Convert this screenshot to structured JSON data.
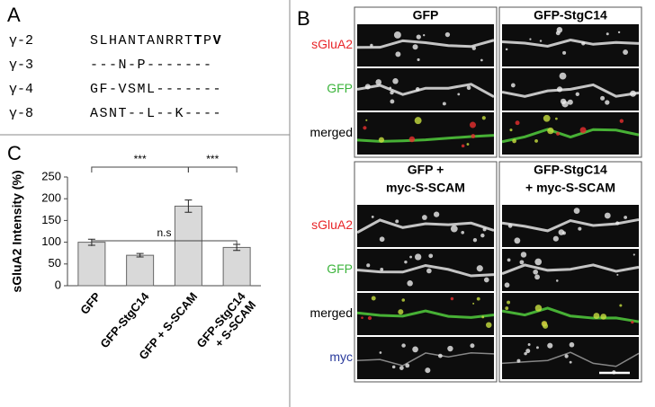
{
  "panel_a": {
    "label": "A",
    "rows": [
      {
        "name": "γ-2",
        "segments": [
          {
            "text": "SLHANTANRRT"
          },
          {
            "text": "T",
            "bold": true
          },
          {
            "text": "P"
          },
          {
            "text": "V",
            "bold": true
          }
        ]
      },
      {
        "name": "γ-3",
        "segments": [
          {
            "text": "---N-P-------"
          }
        ]
      },
      {
        "name": "γ-4",
        "segments": [
          {
            "text": "GF-VSML-------"
          }
        ]
      },
      {
        "name": "γ-8",
        "segments": [
          {
            "text": "ASNT--L--K----"
          }
        ]
      }
    ]
  },
  "panel_b": {
    "label": "B",
    "groups": [
      {
        "headers": [
          [
            "GFP"
          ],
          [
            "GFP-StgC14"
          ]
        ],
        "rows": [
          {
            "label": "sGluA2",
            "color": "#e8262a"
          },
          {
            "label": "GFP",
            "color": "#3cb43c"
          },
          {
            "label": "merged",
            "color": "#000000"
          }
        ]
      },
      {
        "headers": [
          [
            "GFP +",
            "myc-S-SCAM"
          ],
          [
            "GFP-StgC14",
            "+ myc-S-SCAM"
          ]
        ],
        "rows": [
          {
            "label": "sGluA2",
            "color": "#e8262a"
          },
          {
            "label": "GFP",
            "color": "#3cb43c"
          },
          {
            "label": "merged",
            "color": "#000000"
          },
          {
            "label": "myc",
            "color": "#2a3b9c"
          }
        ]
      }
    ]
  },
  "chart_data": {
    "type": "bar",
    "label": "C",
    "y_label": "sGluA2 Intensity (%)",
    "categories": [
      "GFP",
      "GFP-StgC14",
      "GFP + S-SCAM",
      "GFP-StgC14 + S-SCAM"
    ],
    "values": [
      100,
      70,
      183,
      88
    ],
    "errors": [
      7,
      4,
      14,
      7
    ],
    "color": "#d9d9d9",
    "ylim": [
      0,
      250
    ],
    "yticks": [
      0,
      50,
      100,
      150,
      200,
      250
    ],
    "annotations": [
      "***",
      "***",
      "n.s"
    ]
  }
}
